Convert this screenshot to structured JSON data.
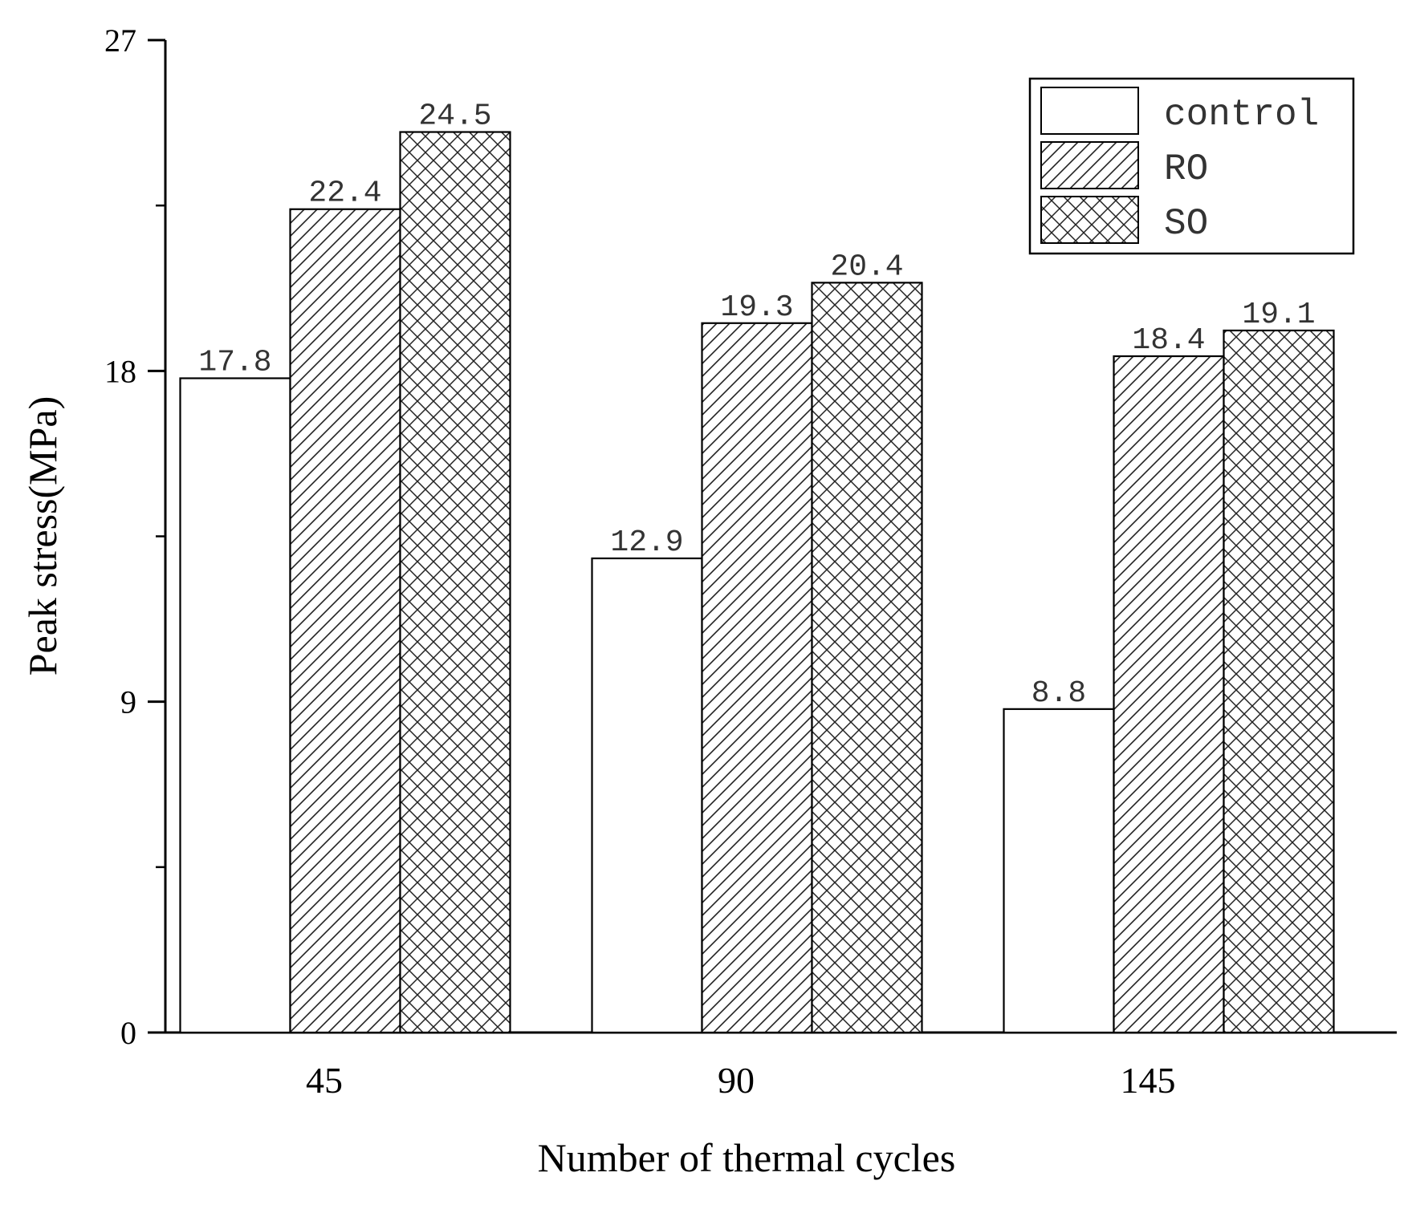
{
  "chart_data": {
    "type": "bar",
    "title": "",
    "xlabel": "Number of thermal cycles",
    "ylabel": "Peak stress(MPa)",
    "categories": [
      "45",
      "90",
      "145"
    ],
    "series": [
      {
        "name": "control",
        "values": [
          17.8,
          12.9,
          8.8
        ],
        "value_labels": [
          "17.8",
          "12.9",
          "8.8"
        ],
        "pattern": "none"
      },
      {
        "name": "RO",
        "values": [
          22.4,
          19.3,
          18.4
        ],
        "value_labels": [
          "22.4",
          "19.3",
          "18.4"
        ],
        "pattern": "diagonal-hatch"
      },
      {
        "name": "SO",
        "values": [
          24.5,
          20.4,
          19.1
        ],
        "value_labels": [
          "24.5",
          "20.4",
          "19.1"
        ],
        "pattern": "cross-hatch"
      }
    ],
    "ylim": [
      0,
      27
    ],
    "yticks": [
      0,
      9,
      18,
      27
    ],
    "grid": false,
    "legend_position": "top-right"
  }
}
